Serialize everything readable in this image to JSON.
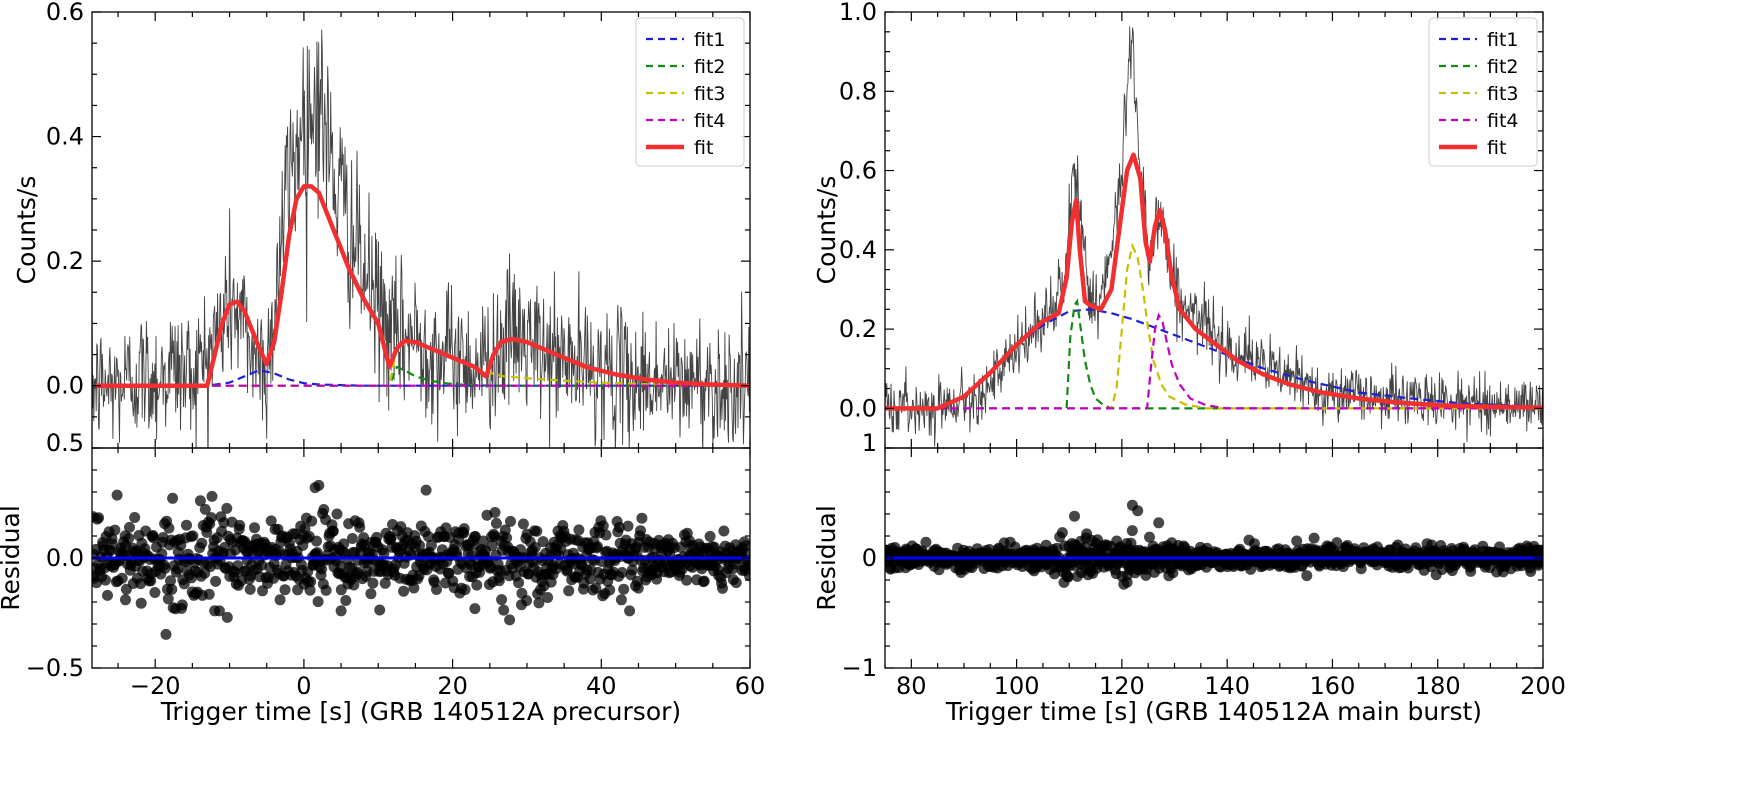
{
  "chart_data": [
    {
      "type": "line",
      "panel": "precursor",
      "xlabel": "Trigger time [s] (GRB 140512A precursor)",
      "ylabel": "Counts/s",
      "xlim": [
        -28.5,
        60
      ],
      "ylim": [
        -0.1,
        0.6
      ],
      "xticks": [
        -20,
        0,
        20,
        40,
        60
      ],
      "xtick_labels": [
        "−20",
        "0",
        "20",
        "40",
        "60"
      ],
      "yticks": [
        0.0,
        0.2,
        0.4,
        0.6
      ],
      "ytick_labels": [
        "0.0",
        "0.2",
        "0.4",
        "0.6"
      ],
      "grid": false,
      "legend_position": "top-right",
      "legend": [
        "fit1",
        "fit2",
        "fit3",
        "fit4",
        "fit"
      ],
      "series": [
        {
          "name": "data",
          "style": "thin black line",
          "x": [
            -28,
            -25,
            -22,
            -20,
            -18,
            -15,
            -13,
            -11,
            -10,
            -9,
            -7,
            -5,
            -4,
            -3,
            -2,
            -1,
            0,
            1,
            2,
            3,
            4,
            6,
            8,
            10,
            12,
            14,
            16,
            18,
            20,
            22,
            24,
            26,
            28,
            30,
            32,
            35,
            38,
            41,
            44,
            47,
            50,
            53,
            56,
            60
          ],
          "y": [
            0.0,
            0.0,
            0.02,
            0.01,
            0.03,
            0.02,
            0.05,
            0.1,
            0.14,
            0.12,
            0.06,
            0.03,
            0.12,
            0.24,
            0.33,
            0.38,
            0.43,
            0.44,
            0.47,
            0.4,
            0.34,
            0.26,
            0.18,
            0.13,
            0.07,
            0.08,
            0.07,
            0.05,
            0.05,
            0.04,
            0.03,
            0.06,
            0.08,
            0.07,
            0.05,
            0.04,
            0.03,
            0.02,
            0.01,
            0.01,
            0.0,
            0.01,
            0.0,
            0.0
          ]
        },
        {
          "name": "fit",
          "color": "#f03030",
          "x": [
            -28,
            -13,
            -12,
            -11,
            -10,
            -9,
            -8,
            -7,
            -6,
            -5,
            -4,
            -3,
            -2,
            -1,
            0,
            1,
            2,
            3,
            4,
            5,
            6,
            8,
            10,
            11.5,
            12.5,
            13.5,
            15,
            17,
            19,
            21,
            23,
            24.5,
            25.5,
            26.5,
            28,
            30,
            32,
            35,
            38,
            42,
            46,
            50,
            55,
            60
          ],
          "y": [
            0.0,
            0.0,
            0.05,
            0.1,
            0.13,
            0.135,
            0.12,
            0.09,
            0.06,
            0.035,
            0.07,
            0.15,
            0.24,
            0.3,
            0.32,
            0.32,
            0.31,
            0.28,
            0.25,
            0.22,
            0.19,
            0.14,
            0.1,
            0.03,
            0.06,
            0.072,
            0.07,
            0.06,
            0.05,
            0.04,
            0.03,
            0.015,
            0.05,
            0.07,
            0.075,
            0.07,
            0.06,
            0.045,
            0.03,
            0.018,
            0.01,
            0.005,
            0.002,
            0.0
          ]
        },
        {
          "name": "fit1",
          "color": "#1f1fd8",
          "x": [
            -28,
            -13,
            -10,
            -8,
            -6,
            -4,
            -2,
            0,
            2,
            5,
            8,
            60
          ],
          "y": [
            0.0,
            0.0,
            0.005,
            0.015,
            0.025,
            0.02,
            0.01,
            0.004,
            0.002,
            0.001,
            0.0,
            0.0
          ]
        },
        {
          "name": "fit2",
          "color": "#138a13",
          "x": [
            -28,
            11.5,
            12.5,
            13.5,
            15,
            17,
            19,
            21,
            23,
            26,
            30,
            60
          ],
          "y": [
            0.0,
            0.0,
            0.03,
            0.025,
            0.015,
            0.008,
            0.004,
            0.002,
            0.001,
            0.0,
            0.0,
            0.0
          ]
        },
        {
          "name": "fit3",
          "color": "#c7c000",
          "x": [
            -28,
            11.5,
            12.5,
            14,
            16,
            18,
            20,
            22,
            24.5,
            27,
            30,
            35,
            40,
            45,
            50,
            60
          ],
          "y": [
            0.0,
            0.0,
            0.06,
            0.072,
            0.065,
            0.055,
            0.045,
            0.035,
            0.022,
            0.015,
            0.012,
            0.008,
            0.005,
            0.003,
            0.0,
            0.0
          ]
        },
        {
          "name": "fit4",
          "color": "#c000c0",
          "x": [
            -28,
            60
          ],
          "y": [
            0.0,
            0.0
          ]
        }
      ],
      "residual": {
        "ylabel": "Residual",
        "ylim": [
          -0.5,
          0.5
        ],
        "yticks": [
          -0.5,
          0.0,
          0.5
        ],
        "ytick_labels": [
          "−0.5",
          "0.0",
          "0.5"
        ],
        "zero_line_color": "#0000ff",
        "points_spread": 0.09,
        "outliers": [
          {
            "x": 2,
            "y": 0.33
          },
          {
            "x": 1.5,
            "y": 0.32
          },
          {
            "x": -12,
            "y": -0.24
          },
          {
            "x": 23,
            "y": -0.23
          },
          {
            "x": 5,
            "y": -0.24
          },
          {
            "x": -24,
            "y": -0.19
          }
        ]
      }
    },
    {
      "type": "line",
      "panel": "main-burst",
      "xlabel": "Trigger time [s] (GRB 140512A main burst)",
      "ylabel": "Counts/s",
      "xlim": [
        75,
        200
      ],
      "ylim": [
        -0.1,
        1.0
      ],
      "xticks": [
        80,
        100,
        120,
        140,
        160,
        180,
        200
      ],
      "xtick_labels": [
        "80",
        "100",
        "120",
        "140",
        "160",
        "180",
        "200"
      ],
      "yticks": [
        0.0,
        0.2,
        0.4,
        0.6,
        0.8,
        1.0
      ],
      "ytick_labels": [
        "0.0",
        "0.2",
        "0.4",
        "0.6",
        "0.8",
        "1.0"
      ],
      "grid": false,
      "legend_position": "top-right",
      "legend": [
        "fit1",
        "fit2",
        "fit3",
        "fit4",
        "fit"
      ],
      "series": [
        {
          "name": "data",
          "style": "thin black line",
          "x": [
            75,
            80,
            85,
            90,
            95,
            100,
            104,
            107,
            109,
            110,
            111,
            112,
            114,
            116,
            118,
            120,
            121,
            122,
            123,
            124,
            125,
            126,
            127,
            128,
            130,
            133,
            136,
            140,
            145,
            150,
            155,
            160,
            170,
            180,
            190,
            200
          ],
          "y": [
            0.01,
            0.0,
            0.01,
            0.02,
            0.06,
            0.14,
            0.21,
            0.26,
            0.3,
            0.45,
            0.62,
            0.5,
            0.28,
            0.27,
            0.38,
            0.6,
            0.82,
            0.95,
            0.7,
            0.55,
            0.4,
            0.42,
            0.5,
            0.45,
            0.3,
            0.24,
            0.21,
            0.16,
            0.12,
            0.09,
            0.06,
            0.04,
            0.03,
            0.02,
            0.01,
            0.01
          ]
        },
        {
          "name": "fit",
          "color": "#f03030",
          "x": [
            75,
            85,
            90,
            95,
            100,
            105,
            108,
            109.5,
            110.5,
            111.3,
            112,
            113,
            114,
            116,
            118,
            119.5,
            121,
            122.2,
            123.5,
            124.5,
            125.3,
            126.3,
            127.2,
            128.2,
            129.5,
            131,
            134,
            138,
            142,
            147,
            152,
            158,
            165,
            172,
            180,
            190,
            200
          ],
          "y": [
            0.0,
            0.0,
            0.03,
            0.09,
            0.16,
            0.22,
            0.24,
            0.33,
            0.47,
            0.525,
            0.4,
            0.27,
            0.26,
            0.25,
            0.3,
            0.45,
            0.6,
            0.64,
            0.58,
            0.42,
            0.37,
            0.46,
            0.5,
            0.45,
            0.33,
            0.25,
            0.2,
            0.16,
            0.12,
            0.085,
            0.06,
            0.04,
            0.025,
            0.015,
            0.008,
            0.004,
            0.002
          ]
        },
        {
          "name": "fit1",
          "color": "#1f1fd8",
          "x": [
            85,
            90,
            95,
            100,
            105,
            110,
            114,
            118,
            122,
            126,
            130,
            135,
            140,
            147,
            155,
            165,
            175,
            185,
            200
          ],
          "y": [
            0.0,
            0.03,
            0.09,
            0.16,
            0.21,
            0.245,
            0.25,
            0.24,
            0.225,
            0.205,
            0.185,
            0.16,
            0.135,
            0.1,
            0.07,
            0.04,
            0.025,
            0.012,
            0.004
          ]
        },
        {
          "name": "fit2",
          "color": "#138a13",
          "x": [
            75,
            109.5,
            110.2,
            111,
            111.5,
            112.2,
            113,
            114,
            115,
            116.5,
            118,
            200
          ],
          "y": [
            0.0,
            0.0,
            0.18,
            0.26,
            0.27,
            0.2,
            0.12,
            0.06,
            0.025,
            0.008,
            0.0,
            0.0
          ]
        },
        {
          "name": "fit3",
          "color": "#c7c000",
          "x": [
            75,
            118,
            119,
            120,
            121,
            122,
            123,
            124,
            125,
            126,
            127.5,
            129,
            132,
            136,
            200
          ],
          "y": [
            0.0,
            0.0,
            0.05,
            0.2,
            0.35,
            0.41,
            0.38,
            0.3,
            0.2,
            0.12,
            0.06,
            0.03,
            0.01,
            0.0,
            0.0
          ]
        },
        {
          "name": "fit4",
          "color": "#c000c0",
          "x": [
            75,
            124.8,
            125.5,
            126.3,
            127,
            127.7,
            128.5,
            129.5,
            131,
            133,
            136,
            140,
            200
          ],
          "y": [
            0.0,
            0.0,
            0.1,
            0.2,
            0.235,
            0.22,
            0.17,
            0.11,
            0.06,
            0.025,
            0.008,
            0.0,
            0.0
          ]
        }
      ],
      "residual": {
        "ylabel": "Residual",
        "ylim": [
          -1,
          1
        ],
        "yticks": [
          -1,
          0,
          1
        ],
        "ytick_labels": [
          "−1",
          "0",
          "1"
        ],
        "zero_line_color": "#0000ff",
        "points_spread": 0.05,
        "outliers": [
          {
            "x": 111,
            "y": 0.38
          },
          {
            "x": 122,
            "y": 0.48
          },
          {
            "x": 123,
            "y": 0.43
          },
          {
            "x": 127,
            "y": 0.32
          },
          {
            "x": 121,
            "y": -0.22
          }
        ]
      }
    }
  ]
}
